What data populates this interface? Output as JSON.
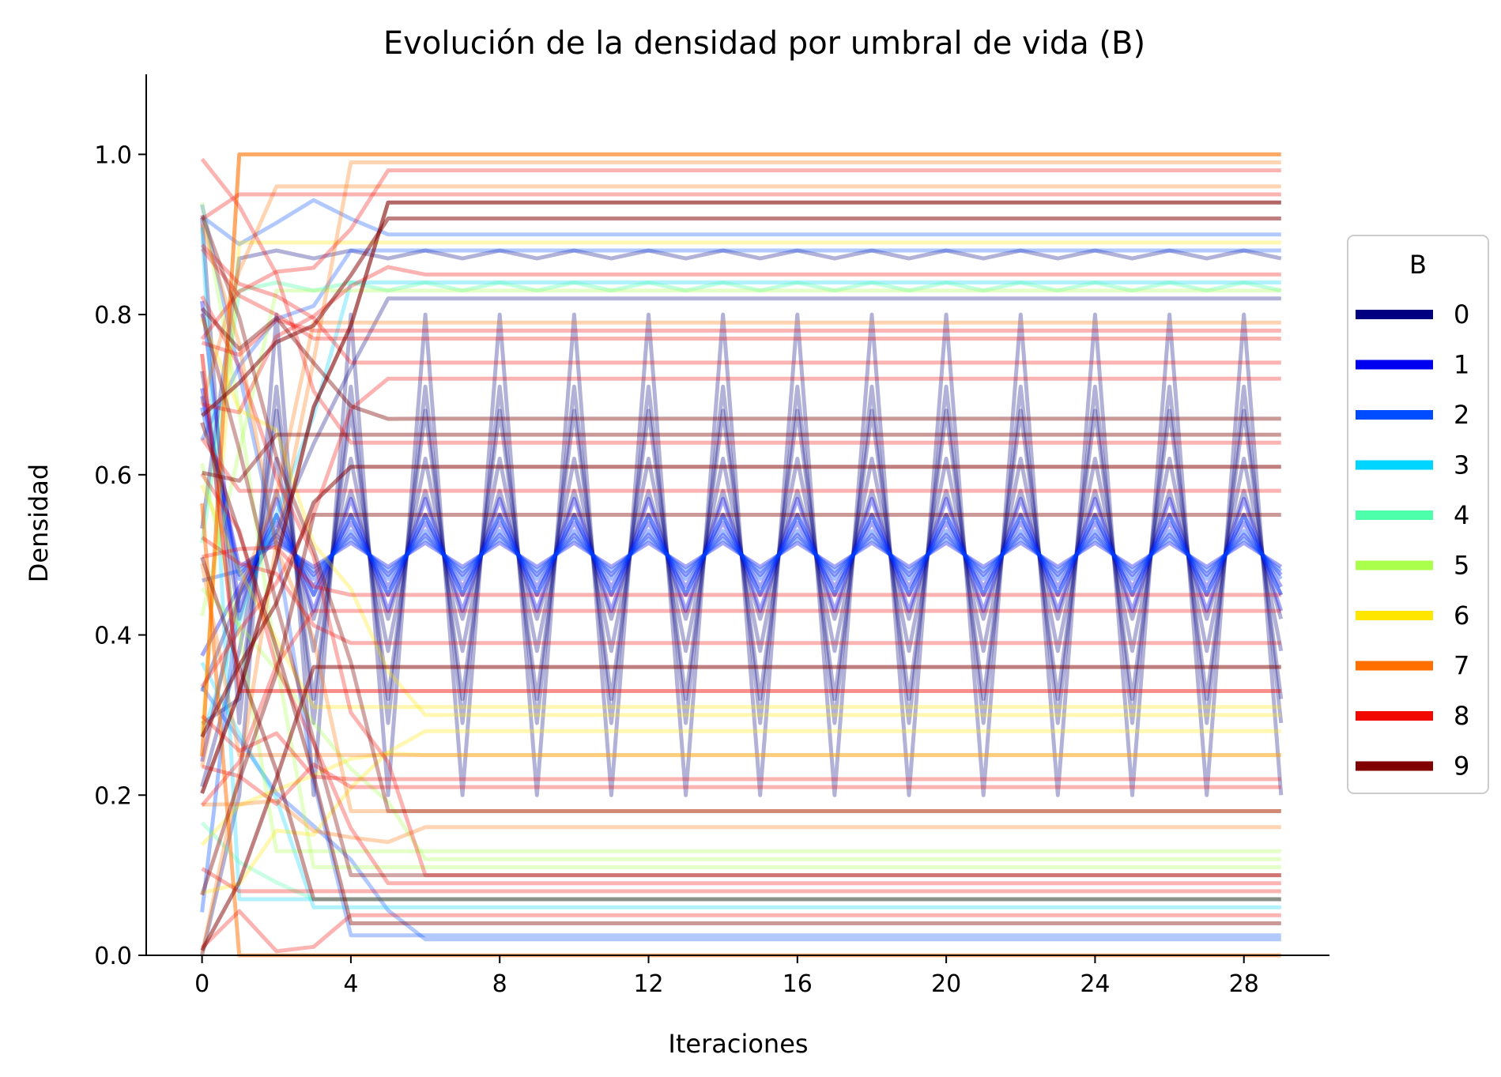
{
  "chart_data": {
    "type": "line",
    "title": "Evolución de la densidad por umbral de vida (B)",
    "xlabel": "Iteraciones",
    "ylabel": "Densidad",
    "xlim": [
      -1.5,
      30.3
    ],
    "ylim": [
      0,
      1.1
    ],
    "xticks": [
      0,
      4,
      8,
      12,
      16,
      20,
      24,
      28
    ],
    "yticks": [
      0.0,
      0.2,
      0.4,
      0.6,
      0.8,
      1.0
    ],
    "xtick_labels": [
      "0",
      "4",
      "8",
      "12",
      "16",
      "20",
      "24",
      "28"
    ],
    "ytick_labels": [
      "0.0",
      "0.2",
      "0.4",
      "0.6",
      "0.8",
      "1.0"
    ],
    "grid": false,
    "iterations": 30,
    "legend": {
      "title": "B",
      "placement": "right",
      "entries": [
        {
          "label": "0",
          "color": "#000080"
        },
        {
          "label": "1",
          "color": "#0000f1"
        },
        {
          "label": "2",
          "color": "#004dff"
        },
        {
          "label": "3",
          "color": "#00d5ff"
        },
        {
          "label": "4",
          "color": "#4dffaa"
        },
        {
          "label": "5",
          "color": "#aaff4d"
        },
        {
          "label": "6",
          "color": "#ffe600"
        },
        {
          "label": "7",
          "color": "#ff6f00"
        },
        {
          "label": "8",
          "color": "#f10800"
        },
        {
          "label": "9",
          "color": "#800000"
        }
      ]
    },
    "series": [
      {
        "B": 0,
        "color": "#000080",
        "style": "oscillating",
        "center": 0.5,
        "amplitude": 0.3,
        "opacity": 0.3
      },
      {
        "B": 0,
        "color": "#000080",
        "style": "oscillating",
        "center": 0.5,
        "amplitude": 0.21,
        "opacity": 0.3
      },
      {
        "B": 0,
        "color": "#000080",
        "style": "oscillating",
        "center": 0.5,
        "amplitude": 0.18,
        "opacity": 0.3
      },
      {
        "B": 0,
        "color": "#000080",
        "style": "oscillating",
        "center": 0.5,
        "amplitude": 0.12,
        "opacity": 0.3
      },
      {
        "B": 0,
        "color": "#000080",
        "style": "oscillating",
        "center": 0.5,
        "amplitude": 0.08,
        "opacity": 0.3
      },
      {
        "B": 0,
        "color": "#000080",
        "style": "oscillating",
        "center": 0.875,
        "amplitude": 0.005,
        "opacity": 0.3
      },
      {
        "B": 0,
        "color": "#000080",
        "style": "flat",
        "value": 0.82,
        "opacity": 0.3
      },
      {
        "B": 1,
        "color": "#0000f1",
        "style": "oscillating",
        "center": 0.5,
        "amplitude": 0.07,
        "opacity": 0.35
      },
      {
        "B": 1,
        "color": "#0000f1",
        "style": "oscillating",
        "center": 0.5,
        "amplitude": 0.05,
        "opacity": 0.35
      },
      {
        "B": 1,
        "color": "#0000f1",
        "style": "oscillating",
        "center": 0.5,
        "amplitude": 0.04,
        "opacity": 0.35
      },
      {
        "B": 1,
        "color": "#0000f1",
        "style": "oscillating",
        "center": 0.5,
        "amplitude": 0.025,
        "opacity": 0.35
      },
      {
        "B": 1,
        "color": "#0000f1",
        "style": "oscillating",
        "center": 0.5,
        "amplitude": 0.015,
        "opacity": 0.35
      },
      {
        "B": 2,
        "color": "#004dff",
        "style": "oscillating",
        "center": 0.5,
        "amplitude": 0.05,
        "opacity": 0.35
      },
      {
        "B": 2,
        "color": "#004dff",
        "style": "oscillating",
        "center": 0.5,
        "amplitude": 0.03,
        "opacity": 0.35
      },
      {
        "B": 2,
        "color": "#004dff",
        "style": "oscillating",
        "center": 0.5,
        "amplitude": 0.02,
        "opacity": 0.35
      },
      {
        "B": 2,
        "color": "#004dff",
        "style": "flat",
        "value": 0.9,
        "opacity": 0.3
      },
      {
        "B": 2,
        "color": "#004dff",
        "style": "flat",
        "value": 0.88,
        "opacity": 0.3
      },
      {
        "B": 2,
        "color": "#004dff",
        "style": "flat",
        "value": 0.02,
        "opacity": 0.3
      },
      {
        "B": 2,
        "color": "#004dff",
        "style": "flat",
        "value": 0.025,
        "opacity": 0.3
      },
      {
        "B": 3,
        "color": "#00d5ff",
        "style": "flat",
        "value": 0.84,
        "opacity": 0.3
      },
      {
        "B": 3,
        "color": "#00d5ff",
        "style": "flat",
        "value": 0.07,
        "opacity": 0.3
      },
      {
        "B": 3,
        "color": "#00d5ff",
        "style": "flat",
        "value": 0.06,
        "opacity": 0.3
      },
      {
        "B": 4,
        "color": "#4dffaa",
        "style": "oscillating",
        "center": 0.835,
        "amplitude": 0.005,
        "opacity": 0.35
      },
      {
        "B": 4,
        "color": "#4dffaa",
        "style": "flat",
        "value": 0.07,
        "opacity": 0.3
      },
      {
        "B": 5,
        "color": "#aaff4d",
        "style": "flat",
        "value": 0.83,
        "opacity": 0.3
      },
      {
        "B": 5,
        "color": "#aaff4d",
        "style": "flat",
        "value": 0.13,
        "opacity": 0.3
      },
      {
        "B": 5,
        "color": "#aaff4d",
        "style": "flat",
        "value": 0.12,
        "opacity": 0.3
      },
      {
        "B": 5,
        "color": "#aaff4d",
        "style": "flat",
        "value": 0.11,
        "opacity": 0.3
      },
      {
        "B": 6,
        "color": "#ffe600",
        "style": "flat",
        "value": 0.31,
        "opacity": 0.3
      },
      {
        "B": 6,
        "color": "#ffe600",
        "style": "flat",
        "value": 0.3,
        "opacity": 0.3
      },
      {
        "B": 6,
        "color": "#ffe600",
        "style": "flat",
        "value": 0.28,
        "opacity": 0.3
      },
      {
        "B": 6,
        "color": "#ffe600",
        "style": "flat",
        "value": 0.25,
        "opacity": 0.3
      },
      {
        "B": 6,
        "color": "#ffe600",
        "style": "flat",
        "value": 0.89,
        "opacity": 0.3
      },
      {
        "B": 7,
        "color": "#ff6f00",
        "style": "flat",
        "value": 1.0,
        "opacity": 0.6
      },
      {
        "B": 7,
        "color": "#ff6f00",
        "style": "flat",
        "value": 0.99,
        "opacity": 0.3
      },
      {
        "B": 7,
        "color": "#ff6f00",
        "style": "flat",
        "value": 0.96,
        "opacity": 0.3
      },
      {
        "B": 7,
        "color": "#ff6f00",
        "style": "flat",
        "value": 0.79,
        "opacity": 0.3
      },
      {
        "B": 7,
        "color": "#ff6f00",
        "style": "flat",
        "value": 0.25,
        "opacity": 0.3
      },
      {
        "B": 7,
        "color": "#ff6f00",
        "style": "flat",
        "value": 0.18,
        "opacity": 0.3
      },
      {
        "B": 7,
        "color": "#ff6f00",
        "style": "flat",
        "value": 0.16,
        "opacity": 0.3
      },
      {
        "B": 7,
        "color": "#ff6f00",
        "style": "flat",
        "value": 0.0,
        "opacity": 0.5
      },
      {
        "B": 8,
        "color": "#f10800",
        "style": "flat",
        "value": 0.98,
        "opacity": 0.3
      },
      {
        "B": 8,
        "color": "#f10800",
        "style": "flat",
        "value": 0.95,
        "opacity": 0.3
      },
      {
        "B": 8,
        "color": "#f10800",
        "style": "flat",
        "value": 0.85,
        "opacity": 0.3
      },
      {
        "B": 8,
        "color": "#f10800",
        "style": "flat",
        "value": 0.78,
        "opacity": 0.3
      },
      {
        "B": 8,
        "color": "#f10800",
        "style": "flat",
        "value": 0.77,
        "opacity": 0.3
      },
      {
        "B": 8,
        "color": "#f10800",
        "style": "flat",
        "value": 0.74,
        "opacity": 0.3
      },
      {
        "B": 8,
        "color": "#f10800",
        "style": "flat",
        "value": 0.72,
        "opacity": 0.3
      },
      {
        "B": 8,
        "color": "#f10800",
        "style": "flat",
        "value": 0.64,
        "opacity": 0.3
      },
      {
        "B": 8,
        "color": "#f10800",
        "style": "flat",
        "value": 0.58,
        "opacity": 0.3
      },
      {
        "B": 8,
        "color": "#f10800",
        "style": "flat",
        "value": 0.45,
        "opacity": 0.3
      },
      {
        "B": 8,
        "color": "#f10800",
        "style": "flat",
        "value": 0.43,
        "opacity": 0.3
      },
      {
        "B": 8,
        "color": "#f10800",
        "style": "flat",
        "value": 0.39,
        "opacity": 0.3
      },
      {
        "B": 8,
        "color": "#f10800",
        "style": "flat",
        "value": 0.33,
        "opacity": 0.45
      },
      {
        "B": 8,
        "color": "#f10800",
        "style": "flat",
        "value": 0.22,
        "opacity": 0.3
      },
      {
        "B": 8,
        "color": "#f10800",
        "style": "flat",
        "value": 0.21,
        "opacity": 0.3
      },
      {
        "B": 8,
        "color": "#f10800",
        "style": "flat",
        "value": 0.1,
        "opacity": 0.3
      },
      {
        "B": 8,
        "color": "#f10800",
        "style": "flat",
        "value": 0.09,
        "opacity": 0.3
      },
      {
        "B": 8,
        "color": "#f10800",
        "style": "flat",
        "value": 0.08,
        "opacity": 0.3
      },
      {
        "B": 8,
        "color": "#f10800",
        "style": "flat",
        "value": 0.05,
        "opacity": 0.3
      },
      {
        "B": 9,
        "color": "#800000",
        "style": "flat",
        "value": 0.94,
        "opacity": 0.6
      },
      {
        "B": 9,
        "color": "#800000",
        "style": "flat",
        "value": 0.92,
        "opacity": 0.5
      },
      {
        "B": 9,
        "color": "#800000",
        "style": "flat",
        "value": 0.67,
        "opacity": 0.4
      },
      {
        "B": 9,
        "color": "#800000",
        "style": "flat",
        "value": 0.65,
        "opacity": 0.4
      },
      {
        "B": 9,
        "color": "#800000",
        "style": "flat",
        "value": 0.61,
        "opacity": 0.5
      },
      {
        "B": 9,
        "color": "#800000",
        "style": "flat",
        "value": 0.55,
        "opacity": 0.4
      },
      {
        "B": 9,
        "color": "#800000",
        "style": "flat",
        "value": 0.36,
        "opacity": 0.5
      },
      {
        "B": 9,
        "color": "#800000",
        "style": "flat",
        "value": 0.18,
        "opacity": 0.35
      },
      {
        "B": 9,
        "color": "#800000",
        "style": "flat",
        "value": 0.1,
        "opacity": 0.35
      },
      {
        "B": 9,
        "color": "#800000",
        "style": "flat",
        "value": 0.07,
        "opacity": 0.4
      },
      {
        "B": 9,
        "color": "#800000",
        "style": "flat",
        "value": 0.04,
        "opacity": 0.4
      }
    ]
  }
}
